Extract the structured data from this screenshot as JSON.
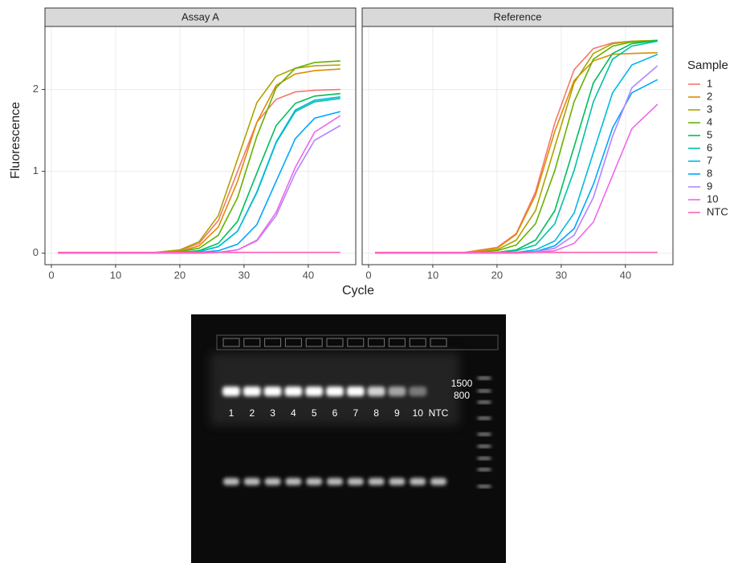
{
  "chart_data": [
    {
      "type": "line",
      "title": "Assay A",
      "xlabel": "Cycle",
      "ylabel": "Fluorescence",
      "legend_title": "Sample",
      "x": [
        1,
        15,
        20,
        23,
        26,
        29,
        32,
        35,
        38,
        41,
        45
      ],
      "xlim": [
        -1,
        47.4
      ],
      "ylim": [
        -0.14,
        2.77
      ],
      "xticks": [
        0,
        10,
        20,
        30,
        40
      ],
      "yticks": [
        0,
        1,
        2
      ],
      "grid": true,
      "series": [
        {
          "name": "1",
          "color": "#F8766D",
          "values": [
            0,
            0,
            0.03,
            0.12,
            0.4,
            1.0,
            1.6,
            1.88,
            1.97,
            1.99,
            2.0
          ]
        },
        {
          "name": "2",
          "color": "#DB8E00",
          "values": [
            0,
            0,
            0.02,
            0.09,
            0.32,
            0.88,
            1.6,
            2.05,
            2.19,
            2.23,
            2.25
          ]
        },
        {
          "name": "3",
          "color": "#AEA200",
          "values": [
            0,
            0,
            0.04,
            0.14,
            0.46,
            1.15,
            1.84,
            2.16,
            2.26,
            2.29,
            2.3
          ]
        },
        {
          "name": "4",
          "color": "#64B200",
          "values": [
            0,
            0,
            0.02,
            0.06,
            0.22,
            0.68,
            1.43,
            2.02,
            2.26,
            2.33,
            2.35
          ]
        },
        {
          "name": "5",
          "color": "#00BD5C",
          "values": [
            0,
            0,
            0.01,
            0.03,
            0.12,
            0.39,
            0.98,
            1.56,
            1.83,
            1.92,
            1.95
          ]
        },
        {
          "name": "6",
          "color": "#00C1A7",
          "values": [
            0,
            0,
            0.01,
            0.02,
            0.08,
            0.27,
            0.74,
            1.35,
            1.73,
            1.85,
            1.89
          ]
        },
        {
          "name": "7",
          "color": "#00BADE",
          "values": [
            0,
            0,
            0.01,
            0.02,
            0.08,
            0.27,
            0.75,
            1.36,
            1.75,
            1.87,
            1.91
          ]
        },
        {
          "name": "8",
          "color": "#00A6FF",
          "values": [
            0,
            0,
            0,
            0.01,
            0.03,
            0.11,
            0.35,
            0.88,
            1.4,
            1.65,
            1.73
          ]
        },
        {
          "name": "9",
          "color": "#B385FF",
          "values": [
            0,
            0,
            0,
            0,
            0.01,
            0.04,
            0.15,
            0.46,
            0.98,
            1.38,
            1.56
          ]
        },
        {
          "name": "10",
          "color": "#EF67EB",
          "values": [
            0,
            0,
            0,
            0,
            0.01,
            0.04,
            0.16,
            0.5,
            1.05,
            1.48,
            1.68
          ]
        },
        {
          "name": "NTC",
          "color": "#FF63B6",
          "values": [
            0.01,
            0.01,
            0.01,
            0.01,
            0.01,
            0.01,
            0.01,
            0.01,
            0.01,
            0.01,
            0.01
          ]
        }
      ]
    },
    {
      "type": "line",
      "title": "Reference",
      "x": [
        1,
        15,
        20,
        23,
        26,
        29,
        32,
        35,
        38,
        41,
        45
      ],
      "xlim": [
        -1,
        47.4
      ],
      "ylim": [
        -0.14,
        2.77
      ],
      "xticks": [
        0,
        10,
        20,
        30,
        40
      ],
      "yticks": [
        0,
        1,
        2
      ],
      "grid": true,
      "series": [
        {
          "values": [
            0,
            0.01,
            0.07,
            0.24,
            0.75,
            1.59,
            2.24,
            2.5,
            2.57,
            2.59,
            2.6
          ]
        },
        {
          "values": [
            0,
            0.01,
            0.06,
            0.23,
            0.71,
            1.49,
            2.11,
            2.35,
            2.43,
            2.44,
            2.45
          ]
        },
        {
          "values": [
            0,
            0,
            0.04,
            0.16,
            0.52,
            1.3,
            2.08,
            2.44,
            2.56,
            2.59,
            2.6
          ]
        },
        {
          "values": [
            0,
            0,
            0.03,
            0.1,
            0.36,
            1.01,
            1.85,
            2.37,
            2.53,
            2.58,
            2.6
          ]
        },
        {
          "values": [
            0,
            0,
            0.01,
            0.04,
            0.16,
            0.52,
            1.3,
            2.08,
            2.44,
            2.56,
            2.6
          ]
        },
        {
          "values": [
            0,
            0,
            0.01,
            0.03,
            0.1,
            0.36,
            1.01,
            1.85,
            2.37,
            2.53,
            2.59
          ]
        },
        {
          "values": [
            0,
            0,
            0,
            0.01,
            0.04,
            0.15,
            0.49,
            1.23,
            1.96,
            2.3,
            2.43
          ]
        },
        {
          "values": [
            0,
            0,
            0,
            0.01,
            0.02,
            0.09,
            0.3,
            0.84,
            1.53,
            1.96,
            2.12
          ]
        },
        {
          "values": [
            0,
            0,
            0,
            0,
            0.02,
            0.06,
            0.22,
            0.68,
            1.43,
            2.02,
            2.29
          ]
        },
        {
          "values": [
            0,
            0,
            0,
            0,
            0.01,
            0.03,
            0.12,
            0.38,
            0.95,
            1.52,
            1.82
          ]
        },
        {
          "values": [
            0.01,
            0.01,
            0.01,
            0.01,
            0.01,
            0.01,
            0.01,
            0.01,
            0.01,
            0.01,
            0.01
          ]
        }
      ]
    }
  ],
  "gel": {
    "lane_labels": [
      "1",
      "2",
      "3",
      "4",
      "5",
      "6",
      "7",
      "8",
      "9",
      "10",
      "NTC"
    ],
    "ladder_labels": [
      "1500",
      "800"
    ]
  }
}
